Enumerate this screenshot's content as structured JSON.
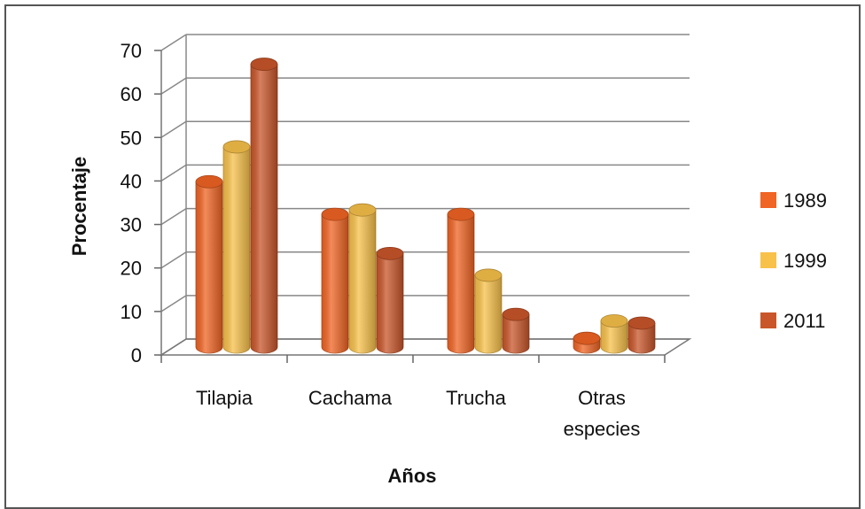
{
  "chart_data": {
    "type": "bar",
    "title": "",
    "xlabel": "Años",
    "ylabel": "Procentaje",
    "ylim": [
      0,
      70
    ],
    "yticks": [
      0,
      10,
      20,
      30,
      40,
      50,
      60,
      70
    ],
    "grid": true,
    "legend_position": "right",
    "categories": [
      [
        "Tilapia"
      ],
      [
        "Cachama"
      ],
      [
        "Trucha"
      ],
      [
        "Otras",
        "especies"
      ]
    ],
    "series": [
      {
        "name": "1989",
        "values": [
          38,
          30.5,
          30.5,
          2
        ],
        "color": "#f06424"
      },
      {
        "name": "1999",
        "values": [
          46,
          31.5,
          16.5,
          6
        ],
        "color": "#f8c14a"
      },
      {
        "name": "2011",
        "values": [
          65,
          21.5,
          7.5,
          5.5
        ],
        "color": "#c9562a"
      }
    ]
  }
}
